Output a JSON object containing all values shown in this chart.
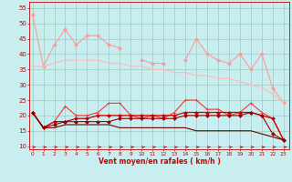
{
  "x": [
    0,
    1,
    2,
    3,
    4,
    5,
    6,
    7,
    8,
    9,
    10,
    11,
    12,
    13,
    14,
    15,
    16,
    17,
    18,
    19,
    20,
    21,
    22,
    23
  ],
  "series": [
    {
      "color": "#ff9999",
      "linewidth": 0.8,
      "marker": "D",
      "markersize": 2.0,
      "values": [
        53,
        36,
        43,
        48,
        43,
        46,
        46,
        43,
        42,
        null,
        38,
        37,
        37,
        null,
        38,
        45,
        40,
        38,
        37,
        40,
        35,
        40,
        29,
        24
      ]
    },
    {
      "color": "#ffbbbb",
      "linewidth": 0.9,
      "marker": null,
      "markersize": 0,
      "values": [
        36,
        36,
        37,
        38,
        38,
        38,
        38,
        37,
        37,
        36,
        36,
        35,
        35,
        34,
        34,
        33,
        33,
        32,
        32,
        31,
        30,
        29,
        27,
        24
      ]
    },
    {
      "color": "#ff3333",
      "linewidth": 0.8,
      "marker": "+",
      "markersize": 3.0,
      "values": [
        21,
        16,
        18,
        23,
        20,
        20,
        21,
        24,
        24,
        20,
        19,
        20,
        19,
        21,
        25,
        25,
        22,
        22,
        20,
        21,
        24,
        21,
        19,
        12
      ]
    },
    {
      "color": "#cc0000",
      "linewidth": 0.9,
      "marker": "D",
      "markersize": 2.0,
      "values": [
        21,
        16,
        18,
        18,
        19,
        19,
        20,
        20,
        20,
        20,
        20,
        20,
        20,
        20,
        21,
        21,
        21,
        21,
        21,
        21,
        21,
        20,
        19,
        12
      ]
    },
    {
      "color": "#990000",
      "linewidth": 0.8,
      "marker": "D",
      "markersize": 2.0,
      "values": [
        21,
        16,
        17,
        18,
        18,
        18,
        18,
        18,
        19,
        19,
        19,
        19,
        19,
        19,
        20,
        20,
        20,
        20,
        20,
        20,
        21,
        20,
        14,
        12
      ]
    },
    {
      "color": "#660000",
      "linewidth": 0.8,
      "marker": null,
      "markersize": 0,
      "values": [
        21,
        16,
        16,
        17,
        17,
        17,
        17,
        17,
        16,
        16,
        16,
        16,
        16,
        16,
        16,
        15,
        15,
        15,
        15,
        15,
        15,
        14,
        13,
        12
      ]
    }
  ],
  "xlabel": "Vent moyen/en rafales ( km/h )",
  "xlim": [
    -0.3,
    23.5
  ],
  "ylim": [
    9,
    57
  ],
  "yticks": [
    10,
    15,
    20,
    25,
    30,
    35,
    40,
    45,
    50,
    55
  ],
  "xticks": [
    0,
    1,
    2,
    3,
    4,
    5,
    6,
    7,
    8,
    9,
    10,
    11,
    12,
    13,
    14,
    15,
    16,
    17,
    18,
    19,
    20,
    21,
    22,
    23
  ],
  "bg_color": "#c8eef0",
  "grid_color": "#99ccbb",
  "arrow_color": "#cc0000",
  "xlabel_color": "#cc0000",
  "tick_color": "#cc0000",
  "spine_color": "#cc0000"
}
